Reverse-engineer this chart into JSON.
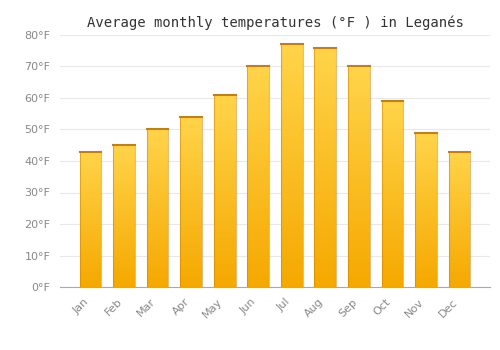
{
  "title": "Average monthly temperatures (°F ) in Leganés",
  "months": [
    "Jan",
    "Feb",
    "Mar",
    "Apr",
    "May",
    "Jun",
    "Jul",
    "Aug",
    "Sep",
    "Oct",
    "Nov",
    "Dec"
  ],
  "values": [
    43,
    45,
    50,
    54,
    61,
    70,
    77,
    76,
    70,
    59,
    49,
    43
  ],
  "ylim": [
    0,
    80
  ],
  "yticks": [
    0,
    10,
    20,
    30,
    40,
    50,
    60,
    70,
    80
  ],
  "ytick_labels": [
    "0°F",
    "10°F",
    "20°F",
    "30°F",
    "40°F",
    "50°F",
    "60°F",
    "70°F",
    "80°F"
  ],
  "bar_color_bottom": "#F5A800",
  "bar_color_top": "#FFD44A",
  "bar_edge_color": "#C98000",
  "background_color": "#ffffff",
  "grid_color": "#e8e8e8",
  "title_fontsize": 10,
  "tick_fontsize": 8,
  "bar_width": 0.65
}
